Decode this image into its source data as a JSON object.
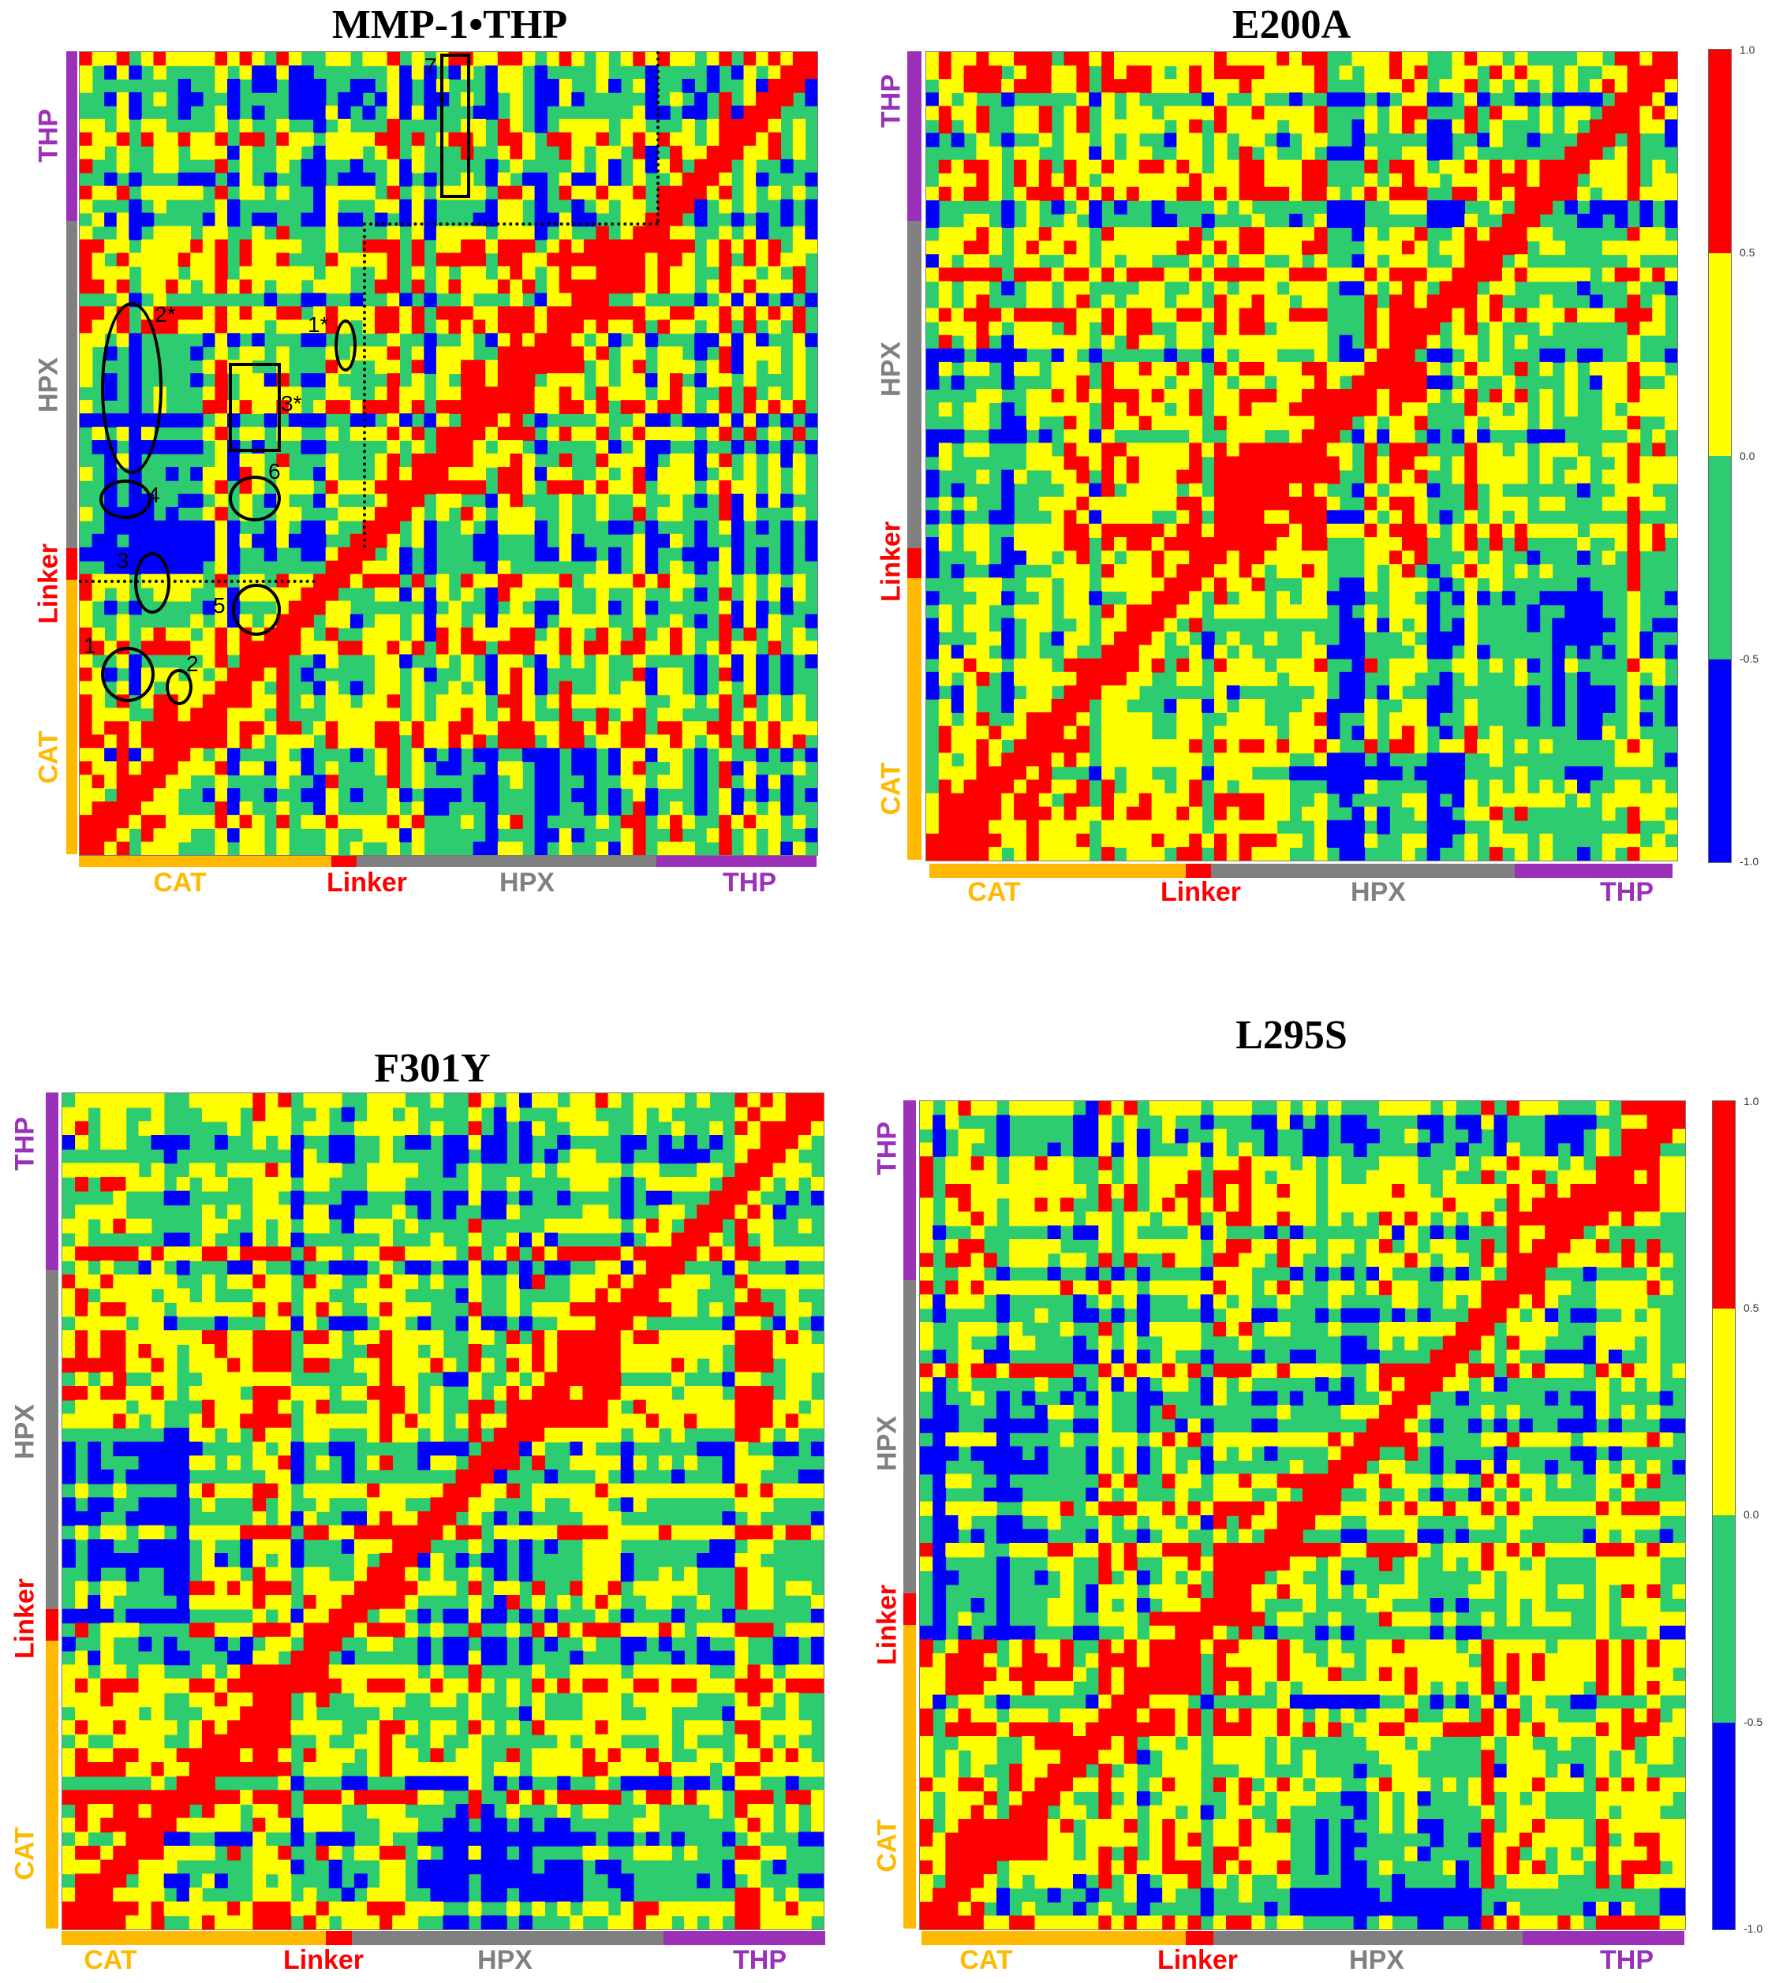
{
  "colors": {
    "red": "#ff0000",
    "yellow": "#ffff00",
    "green": "#2ecc71",
    "blue": "#0000ff",
    "CAT": "#ffb900",
    "Linker": "#ff0000",
    "HPX": "#808080",
    "THP": "#9b30b9"
  },
  "segment_labels": {
    "CAT": "CAT",
    "Linker": "Linker",
    "HPX": "HPX",
    "THP": "THP"
  },
  "colorbar": {
    "ticks": [
      "1.0",
      "0.5",
      "0.0",
      "-0.5",
      "-1.0"
    ],
    "bins": [
      {
        "range": "0.5 to 1.0",
        "color": "red"
      },
      {
        "range": "0.0 to 0.5",
        "color": "yellow"
      },
      {
        "range": "-0.5 to 0.0",
        "color": "green"
      },
      {
        "range": "-1.0 to -0.5",
        "color": "blue"
      }
    ]
  },
  "annotations": {
    "labels": [
      "1",
      "2",
      "3",
      "4",
      "5",
      "6",
      "7",
      "1*",
      "2*",
      "3*"
    ]
  },
  "chart_data": [
    {
      "type": "heatmap",
      "title": "MMP-1•THP",
      "domains": [
        "CAT",
        "Linker",
        "HPX",
        "THP"
      ],
      "value_range": [
        -1.0,
        1.0
      ],
      "annotated_regions": [
        "1",
        "2",
        "3",
        "4",
        "5",
        "6",
        "7",
        "1*",
        "2*",
        "3*"
      ],
      "has_colorbar": false
    },
    {
      "type": "heatmap",
      "title": "E200A",
      "domains": [
        "CAT",
        "Linker",
        "HPX",
        "THP"
      ],
      "value_range": [
        -1.0,
        1.0
      ],
      "has_colorbar": true
    },
    {
      "type": "heatmap",
      "title": "F301Y",
      "domains": [
        "CAT",
        "Linker",
        "HPX",
        "THP"
      ],
      "value_range": [
        -1.0,
        1.0
      ],
      "has_colorbar": false
    },
    {
      "type": "heatmap",
      "title": "L295S",
      "domains": [
        "CAT",
        "Linker",
        "HPX",
        "THP"
      ],
      "value_range": [
        -1.0,
        1.0
      ],
      "has_colorbar": true
    }
  ]
}
